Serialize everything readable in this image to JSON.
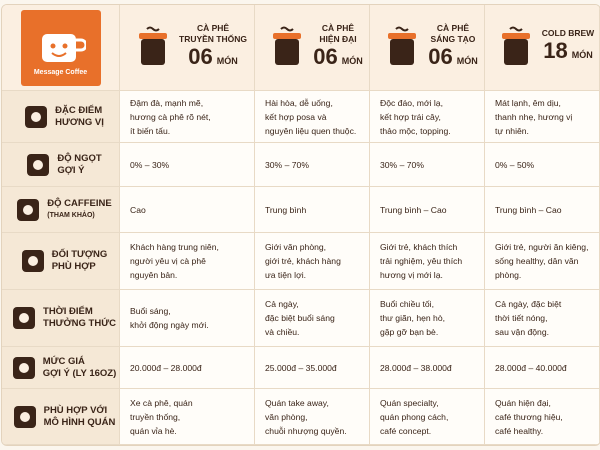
{
  "logo": {
    "text": "Message Coffee"
  },
  "columns": [
    {
      "title": [
        "CÀ PHÊ",
        "TRUYỀN THỐNG"
      ],
      "count": "06",
      "unit": "MÓN"
    },
    {
      "title": [
        "CÀ PHÊ",
        "HIỆN ĐẠI"
      ],
      "count": "06",
      "unit": "MÓN"
    },
    {
      "title": [
        "CÀ PHÊ",
        "SÁNG TẠO"
      ],
      "count": "06",
      "unit": "MÓN"
    },
    {
      "title": [
        "COLD BREW"
      ],
      "count": "18",
      "unit": "MÓN"
    }
  ],
  "rows": [
    {
      "label": [
        "ĐẶC ĐIỂM",
        "HƯƠNG VỊ"
      ],
      "cells": [
        [
          "Đậm đà, mạnh mẽ,",
          "hương cà phê rõ nét,",
          "ít biến tấu."
        ],
        [
          "Hài hòa, dễ uống,",
          "kết hợp posa và",
          "nguyên liệu quen thuộc."
        ],
        [
          "Độc đáo, mới lạ,",
          "kết hợp trái cây,",
          "thảo mộc, topping."
        ],
        [
          "Mát lạnh, êm dịu,",
          "thanh nhẹ, hương vị",
          "tự nhiên."
        ]
      ]
    },
    {
      "label": [
        "ĐỘ NGỌT",
        "GỢI Ý"
      ],
      "cells": [
        [
          "0% – 30%"
        ],
        [
          "30% – 70%"
        ],
        [
          "30% – 70%"
        ],
        [
          "0% – 50%"
        ]
      ]
    },
    {
      "label": [
        "ĐỘ CAFFEINE"
      ],
      "note": "(THAM KHẢO)",
      "cells": [
        [
          "Cao"
        ],
        [
          "Trung bình"
        ],
        [
          "Trung bình – Cao"
        ],
        [
          "Trung bình – Cao"
        ]
      ]
    },
    {
      "label": [
        "ĐỐI TƯỢNG",
        "PHÙ HỢP"
      ],
      "cells": [
        [
          "Khách hàng trung niên,",
          "người yêu vị cà phê",
          "nguyên bản."
        ],
        [
          "Giới văn phòng,",
          "giới trẻ, khách hàng",
          "ưa tiện lợi."
        ],
        [
          "Giới trẻ, khách thích",
          "trải nghiệm, yêu thích",
          "hương vị mới lạ."
        ],
        [
          "Giới trẻ, người ăn kiêng,",
          "sống healthy, dân văn phòng."
        ]
      ]
    },
    {
      "label": [
        "THỜI ĐIỂM",
        "THƯỞNG THỨC"
      ],
      "cells": [
        [
          "Buổi sáng,",
          "khởi động ngày mới."
        ],
        [
          "Cả ngày,",
          "đặc biệt buổi sáng",
          "và chiều."
        ],
        [
          "Buổi chiều tối,",
          "thư giãn, hẹn hò,",
          "gặp gỡ bạn bè."
        ],
        [
          "Cả ngày, đặc biệt",
          "thời tiết nóng,",
          "sau vận động."
        ]
      ]
    },
    {
      "label": [
        "MỨC GIÁ",
        "GỢI Ý (LY 16OZ)"
      ],
      "cells": [
        [
          "20.000đ – 28.000đ"
        ],
        [
          "25.000đ – 35.000đ"
        ],
        [
          "28.000đ – 38.000đ"
        ],
        [
          "28.000đ – 40.000đ"
        ]
      ]
    },
    {
      "label": [
        "PHÙ HỢP VỚI",
        "MÔ HÌNH QUÁN"
      ],
      "cells": [
        [
          "Xe cà phê, quán",
          "truyền thống,",
          "quán vỉa hè."
        ],
        [
          "Quán take away,",
          "văn phòng,",
          "chuỗi nhượng quyền."
        ],
        [
          "Quán specialty,",
          "quán phong cách,",
          "café concept."
        ],
        [
          "Quán hiện đại,",
          "café thương hiệu,",
          "café healthy."
        ]
      ]
    }
  ]
}
